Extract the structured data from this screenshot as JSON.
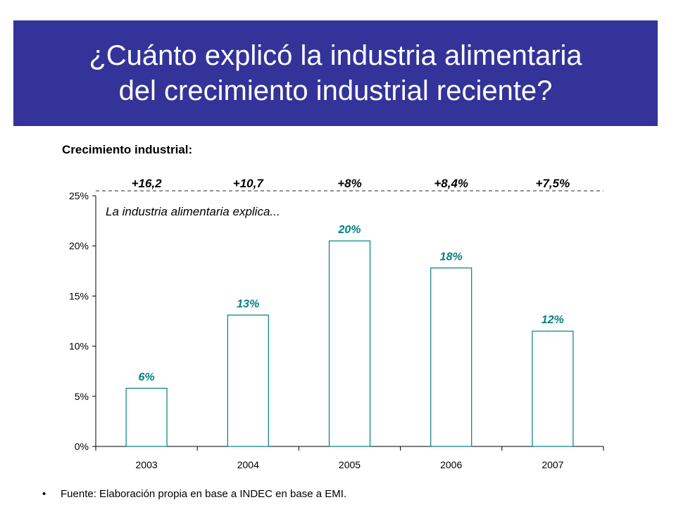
{
  "title": "¿Cuánto explicó la industria alimentaria\ndel crecimiento industrial reciente?",
  "footer": {
    "bullet": "•",
    "text": "Fuente: Elaboración propia en base a INDEC en base a EMI."
  },
  "colors": {
    "title_band": "#333399",
    "bar_stroke": "#008080",
    "value_label": "#008080"
  },
  "chart_data": {
    "type": "bar",
    "title": "Crecimiento industrial:",
    "annotation": "La industria alimentaria explica...",
    "categories": [
      "2003",
      "2004",
      "2005",
      "2006",
      "2007"
    ],
    "values": [
      5.8,
      13.1,
      20.5,
      17.8,
      11.5
    ],
    "value_labels": [
      "6%",
      "13%",
      "20%",
      "18%",
      "12%"
    ],
    "growth_labels": [
      "+16,2",
      "+10,7",
      "+8%",
      "+8,4%",
      "+7,5%"
    ],
    "ylim": [
      0,
      25
    ],
    "yticks": [
      0,
      5,
      10,
      15,
      20,
      25
    ],
    "ytick_labels": [
      "0%",
      "5%",
      "10%",
      "15%",
      "20%",
      "25%"
    ],
    "xlabel": "",
    "ylabel": "",
    "grid": false,
    "reference_line": {
      "value": 25,
      "style": "dashed"
    }
  }
}
